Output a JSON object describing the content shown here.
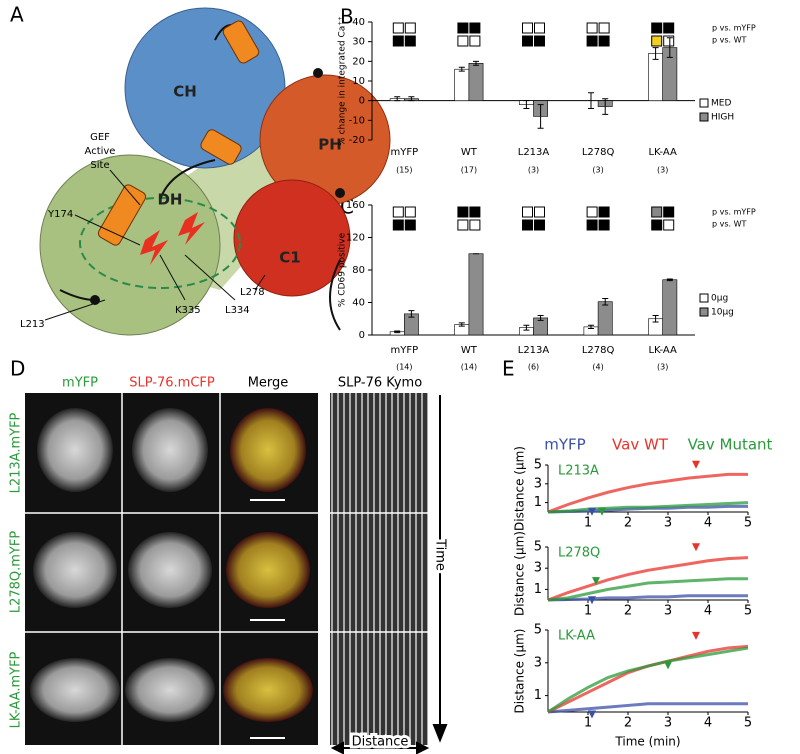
{
  "figure": {
    "panel_labels": [
      "A",
      "B",
      "C",
      "D",
      "E"
    ]
  },
  "diagram": {
    "domains": [
      "CH",
      "PH",
      "DH",
      "C1"
    ],
    "site": [
      "GEF",
      "Active",
      "Site"
    ],
    "residues": [
      "Y174",
      "L213",
      "K335",
      "L334",
      "L278"
    ]
  },
  "micrographs": {
    "columns": [
      "mYFP",
      "SLP-76.mCFP",
      "Merge"
    ],
    "kymo_title": "SLP-76 Kymo",
    "rows": [
      "L213A.mYFP",
      "L278Q.mYFP",
      "LK-AA.mYFP"
    ],
    "time_label": "Time",
    "distance_label": "Distance"
  },
  "chart_data": [
    {
      "type": "bar",
      "y_label": "% change in integrated Ca⁺⁺",
      "categories": [
        "mYFP",
        "WT",
        "L213A",
        "L278Q",
        "LK-AA"
      ],
      "counts": [
        "(15)",
        "(17)",
        "(3)",
        "(3)",
        "(3)"
      ],
      "sig_labels": [
        "p vs. mYFP",
        "p vs. WT"
      ],
      "series": [
        {
          "name": "MED",
          "color": "#ffffff",
          "values": [
            1,
            16,
            -2,
            0,
            24
          ],
          "errors": [
            1,
            1,
            2,
            4,
            3
          ]
        },
        {
          "name": "HIGH",
          "color": "#8c8c8c",
          "values": [
            1,
            19,
            -8,
            -3,
            27
          ],
          "errors": [
            1,
            1,
            6,
            4,
            5
          ]
        }
      ],
      "ylim": [
        -20,
        40
      ],
      "yticks": [
        -20,
        -10,
        0,
        10,
        20,
        30,
        40
      ]
    },
    {
      "type": "bar",
      "y_label": "% CD69 positive",
      "categories": [
        "mYFP",
        "WT",
        "L213A",
        "L278Q",
        "LK-AA"
      ],
      "counts": [
        "(14)",
        "(14)",
        "(6)",
        "(4)",
        "(3)"
      ],
      "sig_labels": [
        "p vs. mYFP",
        "p vs. WT"
      ],
      "series": [
        {
          "name": "0μg",
          "color": "#ffffff",
          "values": [
            4,
            13,
            9,
            10,
            20
          ],
          "errors": [
            1,
            2,
            3,
            2,
            4
          ]
        },
        {
          "name": "10μg",
          "color": "#8c8c8c",
          "values": [
            26,
            100,
            21,
            41,
            68
          ],
          "errors": [
            4,
            0,
            3,
            4,
            1
          ]
        }
      ],
      "ylim": [
        0,
        160
      ],
      "yticks": [
        0,
        40,
        80,
        120,
        160
      ]
    },
    {
      "type": "line",
      "subtitle": "L213A",
      "y_label": "Distance (μm)",
      "x": [
        0,
        0.5,
        1,
        1.5,
        2,
        2.5,
        3,
        3.5,
        4,
        4.5,
        5
      ],
      "series": [
        {
          "name": "mYFP",
          "color": "#3a4fa8",
          "values": [
            0,
            0.05,
            0.1,
            0.2,
            0.3,
            0.4,
            0.4,
            0.5,
            0.5,
            0.6,
            0.6
          ]
        },
        {
          "name": "Vav WT",
          "color": "#e8332a",
          "values": [
            0,
            0.8,
            1.5,
            2.1,
            2.6,
            3.0,
            3.3,
            3.6,
            3.8,
            4.0,
            4.0
          ]
        },
        {
          "name": "Vav Mutant",
          "color": "#2a9a3a",
          "values": [
            0,
            0.1,
            0.3,
            0.4,
            0.5,
            0.5,
            0.6,
            0.7,
            0.8,
            0.9,
            1.0
          ]
        }
      ],
      "markers": [
        {
          "x": 1.1,
          "y": -0.4,
          "series": 0
        },
        {
          "x": 3.7,
          "y": 4.6,
          "series": 1
        },
        {
          "x": 1.35,
          "y": -0.4,
          "series": 2
        }
      ],
      "xlim": [
        0,
        5
      ],
      "xticks": [
        1,
        2,
        3,
        4,
        5
      ],
      "ylim": [
        0,
        5
      ],
      "yticks": [
        1,
        3,
        5
      ]
    },
    {
      "type": "line",
      "subtitle": "L278Q",
      "y_label": "Distance (μm)",
      "x": [
        0,
        0.5,
        1,
        1.5,
        2,
        2.5,
        3,
        3.5,
        4,
        4.5,
        5
      ],
      "series": [
        {
          "color": "#3a4fa8",
          "values": [
            0,
            0.05,
            0.1,
            0.2,
            0.2,
            0.3,
            0.3,
            0.4,
            0.4,
            0.4,
            0.4
          ]
        },
        {
          "color": "#e8332a",
          "values": [
            0,
            0.7,
            1.3,
            1.9,
            2.4,
            2.8,
            3.1,
            3.4,
            3.7,
            3.9,
            4.0
          ]
        },
        {
          "color": "#2a9a3a",
          "values": [
            0,
            0.2,
            0.6,
            1.0,
            1.3,
            1.6,
            1.7,
            1.8,
            1.9,
            2.0,
            2.0
          ]
        }
      ],
      "markers": [
        {
          "x": 1.1,
          "y": -0.4,
          "series": 0
        },
        {
          "x": 3.7,
          "y": 4.6,
          "series": 1
        },
        {
          "x": 1.2,
          "y": 1.4,
          "series": 2
        }
      ],
      "xlim": [
        0,
        5
      ],
      "xticks": [
        1,
        2,
        3,
        4,
        5
      ],
      "ylim": [
        0,
        5
      ],
      "yticks": [
        1,
        3,
        5
      ]
    },
    {
      "type": "line",
      "subtitle": "LK-AA",
      "y_label": "Distance (μm)",
      "x_label": "Time (min)",
      "x": [
        0,
        0.5,
        1,
        1.5,
        2,
        2.5,
        3,
        3.5,
        4,
        4.5,
        5
      ],
      "series": [
        {
          "color": "#3a4fa8",
          "values": [
            0,
            0.1,
            0.2,
            0.3,
            0.4,
            0.5,
            0.5,
            0.5,
            0.5,
            0.5,
            0.5
          ]
        },
        {
          "color": "#e8332a",
          "values": [
            0,
            0.6,
            1.2,
            1.8,
            2.4,
            2.8,
            3.1,
            3.4,
            3.7,
            3.9,
            4.0
          ]
        },
        {
          "color": "#2a9a3a",
          "values": [
            0,
            0.8,
            1.5,
            2.1,
            2.5,
            2.8,
            3.1,
            3.3,
            3.5,
            3.7,
            3.9
          ]
        }
      ],
      "markers": [
        {
          "x": 1.1,
          "y": -0.4,
          "series": 0
        },
        {
          "x": 3.7,
          "y": 4.4,
          "series": 1
        },
        {
          "x": 3.0,
          "y": 2.6,
          "series": 2
        }
      ],
      "xlim": [
        0,
        5
      ],
      "xticks": [
        1,
        2,
        3,
        4,
        5
      ],
      "ylim": [
        0,
        5
      ],
      "yticks": [
        1,
        3,
        5
      ]
    }
  ]
}
